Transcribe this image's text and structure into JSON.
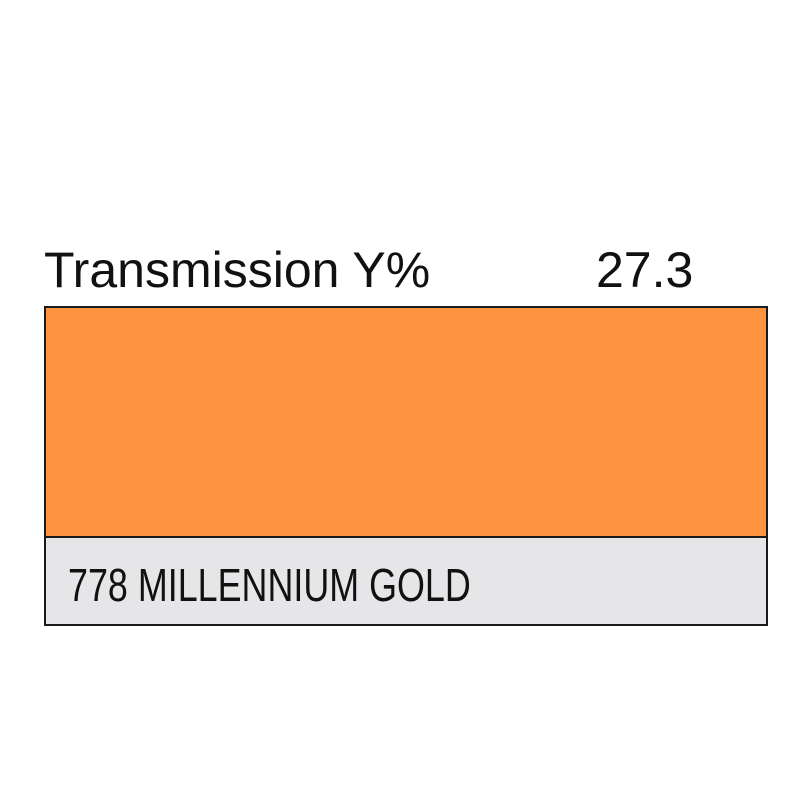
{
  "header": {
    "title": "Transmission Y%",
    "value": "27.3"
  },
  "swatch": {
    "color": "#fe9340",
    "label": "778 MILLENNIUM GOLD",
    "label_background": "#e6e6e8"
  }
}
